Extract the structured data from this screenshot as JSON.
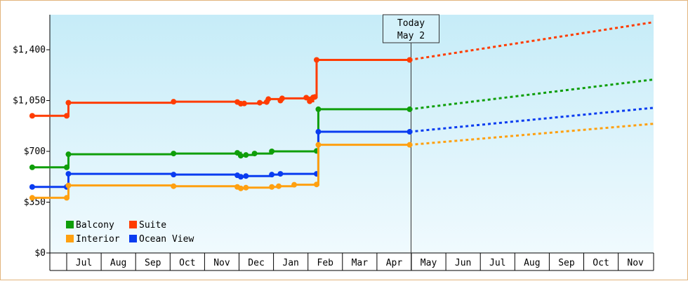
{
  "chart_data": {
    "type": "line",
    "title": "",
    "xlabel": "",
    "ylabel": "",
    "ylim": [
      0,
      1400
    ],
    "yticks": [
      {
        "value": 0,
        "label": "$0"
      },
      {
        "value": 350,
        "label": "$350"
      },
      {
        "value": 700,
        "label": "$700"
      },
      {
        "value": 1050,
        "label": "$1,050"
      },
      {
        "value": 1400,
        "label": "$1,400"
      }
    ],
    "x_months": [
      {
        "month": 6,
        "label": ""
      },
      {
        "month": 7,
        "label": "Jul"
      },
      {
        "month": 8,
        "label": "Aug"
      },
      {
        "month": 9,
        "label": "Sep"
      },
      {
        "month": 10,
        "label": "Oct"
      },
      {
        "month": 11,
        "label": "Nov"
      },
      {
        "month": 12,
        "label": "Dec"
      },
      {
        "month": 13,
        "label": "Jan"
      },
      {
        "month": 14,
        "label": "Feb"
      },
      {
        "month": 15,
        "label": "Mar"
      },
      {
        "month": 16,
        "label": "Apr"
      },
      {
        "month": 17,
        "label": "May"
      },
      {
        "month": 18,
        "label": "Jun"
      },
      {
        "month": 19,
        "label": "Jul"
      },
      {
        "month": 20,
        "label": "Aug"
      },
      {
        "month": 21,
        "label": "Sep"
      },
      {
        "month": 22,
        "label": "Oct"
      },
      {
        "month": 23,
        "label": "Nov"
      }
    ],
    "x_range_months": [
      6.0,
      23.9
    ],
    "today": {
      "label_line1": "Today",
      "label_line2": "May 2",
      "month": 17.0
    },
    "grid": false,
    "legend_position": "bottom-left",
    "series": [
      {
        "name": "Suite",
        "color": "#ff3c00",
        "points": [
          [
            6.0,
            945
          ],
          [
            7.0,
            945
          ],
          [
            7.05,
            1035
          ],
          [
            10.1,
            1042
          ],
          [
            11.95,
            1040
          ],
          [
            12.05,
            1028
          ],
          [
            12.15,
            1030
          ],
          [
            12.6,
            1035
          ],
          [
            12.8,
            1040
          ],
          [
            12.85,
            1060
          ],
          [
            13.2,
            1050
          ],
          [
            13.25,
            1065
          ],
          [
            13.95,
            1070
          ],
          [
            14.05,
            1045
          ],
          [
            14.15,
            1072
          ],
          [
            14.2,
            1075
          ],
          [
            14.25,
            1330
          ],
          [
            16.95,
            1330
          ]
        ],
        "projection": [
          [
            16.95,
            1330
          ],
          [
            23.9,
            1590
          ]
        ]
      },
      {
        "name": "Balcony",
        "color": "#0f9e0a",
        "points": [
          [
            6.0,
            590
          ],
          [
            7.0,
            590
          ],
          [
            7.05,
            680
          ],
          [
            10.1,
            685
          ],
          [
            11.95,
            690
          ],
          [
            12.05,
            670
          ],
          [
            12.2,
            675
          ],
          [
            12.45,
            685
          ],
          [
            12.95,
            700
          ],
          [
            14.25,
            703
          ],
          [
            14.3,
            990
          ],
          [
            16.95,
            990
          ]
        ],
        "projection": [
          [
            16.95,
            990
          ],
          [
            23.9,
            1195
          ]
        ]
      },
      {
        "name": "Ocean View",
        "color": "#0a3cf0",
        "points": [
          [
            6.0,
            455
          ],
          [
            7.0,
            455
          ],
          [
            7.05,
            545
          ],
          [
            10.1,
            540
          ],
          [
            11.95,
            535
          ],
          [
            12.05,
            525
          ],
          [
            12.2,
            530
          ],
          [
            12.95,
            540
          ],
          [
            13.2,
            545
          ],
          [
            14.25,
            545
          ],
          [
            14.3,
            835
          ],
          [
            16.95,
            835
          ]
        ],
        "projection": [
          [
            16.95,
            835
          ],
          [
            23.9,
            1000
          ]
        ]
      },
      {
        "name": "Interior",
        "color": "#ffa010",
        "points": [
          [
            6.0,
            380
          ],
          [
            7.0,
            380
          ],
          [
            7.05,
            465
          ],
          [
            10.1,
            460
          ],
          [
            11.95,
            455
          ],
          [
            12.05,
            445
          ],
          [
            12.2,
            450
          ],
          [
            12.95,
            455
          ],
          [
            13.15,
            460
          ],
          [
            13.6,
            470
          ],
          [
            14.25,
            472
          ],
          [
            14.3,
            745
          ],
          [
            16.95,
            745
          ]
        ],
        "projection": [
          [
            16.95,
            745
          ],
          [
            23.9,
            890
          ]
        ]
      }
    ],
    "legend": [
      {
        "name": "Balcony",
        "color": "#0f9e0a"
      },
      {
        "name": "Suite",
        "color": "#ff3c00"
      },
      {
        "name": "Interior",
        "color": "#ffa010"
      },
      {
        "name": "Ocean View",
        "color": "#0a3cf0"
      }
    ]
  }
}
